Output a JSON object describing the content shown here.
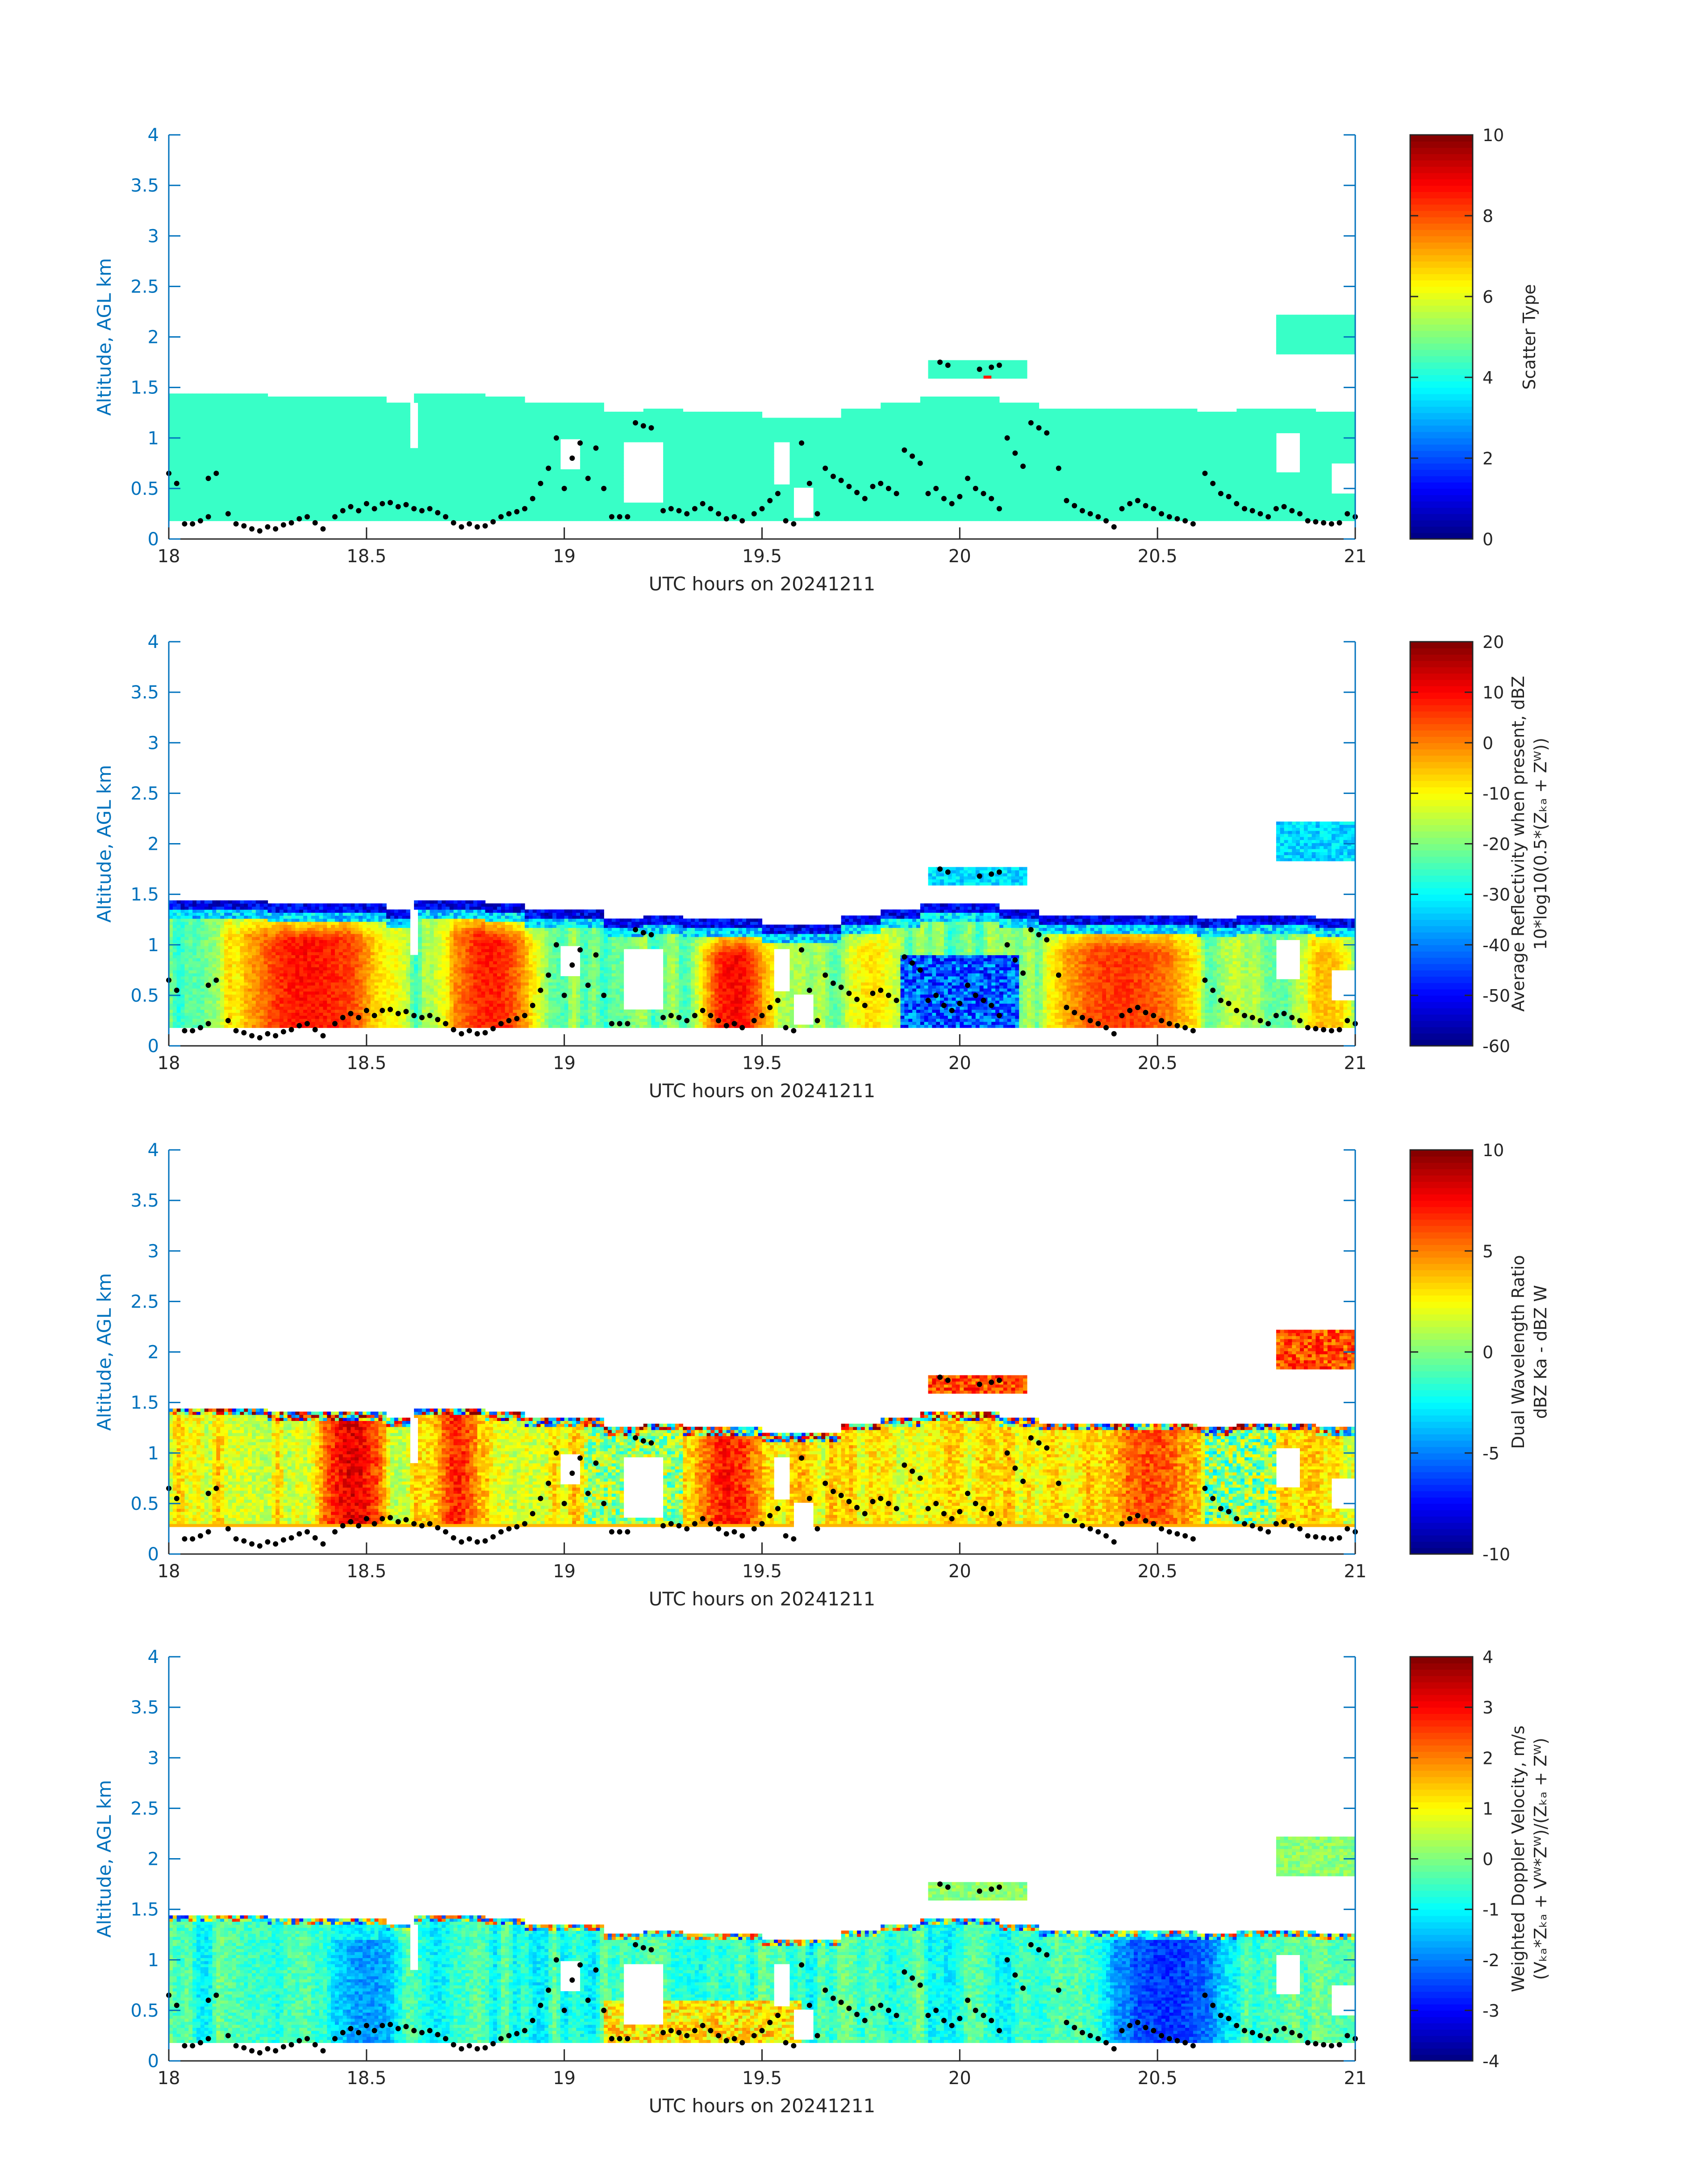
{
  "figure": {
    "background": "#ffffff",
    "axis_color": "#0072bd",
    "text_color": "#262626",
    "colormap": "jet"
  },
  "chart_data": [
    {
      "type": "heatmap",
      "id": "scatter-type",
      "xlabel": "UTC hours on 20241211",
      "ylabel": "Altitude, AGL km",
      "xlim": [
        18,
        21
      ],
      "ylim": [
        0,
        4
      ],
      "xticks": [
        "18",
        "18.5",
        "19",
        "19.5",
        "20",
        "20.5",
        "21"
      ],
      "yticks": [
        "0",
        "0.5",
        "1",
        "1.5",
        "2",
        "2.5",
        "3",
        "3.5",
        "4"
      ],
      "colorbar": {
        "label": [
          "Scatter Type"
        ],
        "min": 0,
        "max": 10,
        "ticks": [
          "0",
          "2",
          "4",
          "6",
          "8",
          "10"
        ]
      },
      "field": {
        "mode": "flat",
        "value": 4.3,
        "cloud_base_km": 0.18,
        "highlights": [
          {
            "t": 20.07,
            "z": 1.6,
            "value": 8.5
          }
        ]
      }
    },
    {
      "type": "heatmap",
      "id": "reflectivity",
      "xlabel": "UTC hours on 20241211",
      "ylabel": "Altitude, AGL km",
      "xlim": [
        18,
        21
      ],
      "ylim": [
        0,
        4
      ],
      "xticks": [
        "18",
        "18.5",
        "19",
        "19.5",
        "20",
        "20.5",
        "21"
      ],
      "yticks": [
        "0",
        "0.5",
        "1",
        "1.5",
        "2",
        "2.5",
        "3",
        "3.5",
        "4"
      ],
      "colorbar": {
        "label": [
          "Average Reflectivity when present, dBZ",
          "10*log10(0.5*(Zₖₐ + Zᵂ))"
        ],
        "min": -60,
        "max": 20,
        "ticks": [
          "-60",
          "-50",
          "-40",
          "-30",
          "-20",
          "-10",
          "0",
          "10",
          "20"
        ]
      },
      "field": {
        "mode": "reflectivity",
        "cloud_base_km": 0.18,
        "cores": [
          {
            "t0": 18.13,
            "t1": 18.58,
            "peak": 9
          },
          {
            "t0": 18.68,
            "t1": 18.95,
            "peak": 8
          },
          {
            "t0": 19.33,
            "t1": 19.53,
            "peak": 10
          },
          {
            "t0": 19.7,
            "t1": 19.85,
            "peak": -8
          },
          {
            "t0": 20.2,
            "t1": 20.62,
            "peak": 6
          },
          {
            "t0": 20.85,
            "t1": 21.0,
            "peak": -5
          }
        ]
      }
    },
    {
      "type": "heatmap",
      "id": "dual-wavelength-ratio",
      "xlabel": "UTC hours on 20241211",
      "ylabel": "Altitude, AGL km",
      "xlim": [
        18,
        21
      ],
      "ylim": [
        0,
        4
      ],
      "xticks": [
        "18",
        "18.5",
        "19",
        "19.5",
        "20",
        "20.5",
        "21"
      ],
      "yticks": [
        "0",
        "0.5",
        "1",
        "1.5",
        "2",
        "2.5",
        "3",
        "3.5",
        "4"
      ],
      "colorbar": {
        "label": [
          "Dual Wavelength Ratio",
          "dBZ Ka - dBZ W"
        ],
        "min": -10,
        "max": 10,
        "ticks": [
          "-10",
          "-5",
          "0",
          "5",
          "10"
        ]
      },
      "field": {
        "mode": "dwr",
        "cloud_base_km": 0.28,
        "cores": [
          {
            "t0": 18.38,
            "t1": 18.55,
            "peak": 8
          },
          {
            "t0": 18.68,
            "t1": 18.78,
            "peak": 7
          },
          {
            "t0": 19.33,
            "t1": 19.5,
            "peak": 7
          },
          {
            "t0": 20.38,
            "t1": 20.6,
            "peak": 6
          }
        ]
      }
    },
    {
      "type": "heatmap",
      "id": "doppler-velocity",
      "xlabel": "UTC hours on 20241211",
      "ylabel": "Altitude, AGL km",
      "xlim": [
        18,
        21
      ],
      "ylim": [
        0,
        4
      ],
      "xticks": [
        "18",
        "18.5",
        "19",
        "19.5",
        "20",
        "20.5",
        "21"
      ],
      "yticks": [
        "0",
        "0.5",
        "1",
        "1.5",
        "2",
        "2.5",
        "3",
        "3.5",
        "4"
      ],
      "colorbar": {
        "label": [
          "Weighted Doppler Velocity, m/s",
          "(Vₖₐ*Zₖₐ + Vᵂ*Zᵂ)/(Zₖₐ + Zᵂ)"
        ],
        "min": -4,
        "max": 4,
        "ticks": [
          "-4",
          "-3",
          "-2",
          "-1",
          "0",
          "1",
          "2",
          "3",
          "4"
        ]
      },
      "field": {
        "mode": "velocity",
        "cloud_base_km": 0.18,
        "cores": [
          {
            "t0": 18.4,
            "t1": 18.6,
            "peak": -1.8
          },
          {
            "t0": 20.35,
            "t1": 20.7,
            "peak": -2.6
          }
        ]
      }
    }
  ],
  "cloud_mask": {
    "top_km": [
      [
        18.0,
        1.45
      ],
      [
        18.1,
        1.45
      ],
      [
        18.2,
        1.45
      ],
      [
        18.25,
        1.4
      ],
      [
        18.35,
        1.4
      ],
      [
        18.45,
        1.4
      ],
      [
        18.55,
        1.35
      ],
      [
        18.62,
        1.45
      ],
      [
        18.7,
        1.45
      ],
      [
        18.8,
        1.4
      ],
      [
        18.9,
        1.35
      ],
      [
        19.0,
        1.35
      ],
      [
        19.1,
        1.25
      ],
      [
        19.2,
        1.3
      ],
      [
        19.3,
        1.25
      ],
      [
        19.4,
        1.25
      ],
      [
        19.5,
        1.2
      ],
      [
        19.6,
        1.2
      ],
      [
        19.7,
        1.3
      ],
      [
        19.8,
        1.35
      ],
      [
        19.9,
        1.4
      ],
      [
        20.0,
        1.4
      ],
      [
        20.1,
        1.35
      ],
      [
        20.2,
        1.3
      ],
      [
        20.3,
        1.3
      ],
      [
        20.4,
        1.3
      ],
      [
        20.5,
        1.3
      ],
      [
        20.6,
        1.25
      ],
      [
        20.7,
        1.3
      ],
      [
        20.8,
        1.3
      ],
      [
        20.9,
        1.25
      ],
      [
        21.0,
        1.25
      ]
    ],
    "elevated_layers": [
      {
        "t0": 19.92,
        "t1": 20.17,
        "z0": 1.58,
        "z1": 1.78
      },
      {
        "t0": 20.8,
        "t1": 21.0,
        "z0": 1.82,
        "z1": 2.22
      }
    ],
    "gaps": [
      {
        "t0": 18.61,
        "t1": 18.63,
        "z0": 0.9,
        "z1": 1.35
      },
      {
        "t0": 18.99,
        "t1": 19.04,
        "z0": 0.7,
        "z1": 1.0
      },
      {
        "t0": 19.15,
        "t1": 19.25,
        "z0": 0.35,
        "z1": 0.95
      },
      {
        "t0": 19.53,
        "t1": 19.57,
        "z0": 0.55,
        "z1": 0.95
      },
      {
        "t0": 19.58,
        "t1": 19.63,
        "z0": 0.2,
        "z1": 0.5
      },
      {
        "t0": 20.8,
        "t1": 20.86,
        "z0": 0.65,
        "z1": 1.05
      },
      {
        "t0": 20.94,
        "t1": 21.0,
        "z0": 0.45,
        "z1": 0.75
      }
    ]
  },
  "overlay_dots": [
    [
      18.0,
      0.65
    ],
    [
      18.02,
      0.55
    ],
    [
      18.04,
      0.15
    ],
    [
      18.06,
      0.15
    ],
    [
      18.08,
      0.18
    ],
    [
      18.1,
      0.22
    ],
    [
      18.1,
      0.6
    ],
    [
      18.12,
      0.65
    ],
    [
      18.15,
      0.25
    ],
    [
      18.17,
      0.15
    ],
    [
      18.19,
      0.13
    ],
    [
      18.21,
      0.1
    ],
    [
      18.23,
      0.08
    ],
    [
      18.25,
      0.12
    ],
    [
      18.27,
      0.1
    ],
    [
      18.29,
      0.14
    ],
    [
      18.31,
      0.16
    ],
    [
      18.33,
      0.2
    ],
    [
      18.35,
      0.22
    ],
    [
      18.37,
      0.16
    ],
    [
      18.39,
      0.1
    ],
    [
      18.42,
      0.22
    ],
    [
      18.44,
      0.28
    ],
    [
      18.46,
      0.32
    ],
    [
      18.48,
      0.28
    ],
    [
      18.5,
      0.35
    ],
    [
      18.52,
      0.3
    ],
    [
      18.54,
      0.35
    ],
    [
      18.56,
      0.36
    ],
    [
      18.58,
      0.32
    ],
    [
      18.6,
      0.34
    ],
    [
      18.62,
      0.3
    ],
    [
      18.64,
      0.28
    ],
    [
      18.66,
      0.3
    ],
    [
      18.68,
      0.26
    ],
    [
      18.7,
      0.22
    ],
    [
      18.72,
      0.16
    ],
    [
      18.74,
      0.12
    ],
    [
      18.76,
      0.15
    ],
    [
      18.78,
      0.12
    ],
    [
      18.8,
      0.13
    ],
    [
      18.82,
      0.17
    ],
    [
      18.84,
      0.22
    ],
    [
      18.86,
      0.25
    ],
    [
      18.88,
      0.27
    ],
    [
      18.9,
      0.3
    ],
    [
      18.92,
      0.4
    ],
    [
      18.94,
      0.55
    ],
    [
      18.96,
      0.7
    ],
    [
      18.98,
      1.0
    ],
    [
      19.0,
      0.5
    ],
    [
      19.02,
      0.8
    ],
    [
      19.04,
      0.95
    ],
    [
      19.06,
      0.6
    ],
    [
      19.08,
      0.9
    ],
    [
      19.1,
      0.5
    ],
    [
      19.12,
      0.22
    ],
    [
      19.14,
      0.22
    ],
    [
      19.16,
      0.22
    ],
    [
      19.18,
      1.15
    ],
    [
      19.2,
      1.12
    ],
    [
      19.22,
      1.1
    ],
    [
      19.25,
      0.28
    ],
    [
      19.27,
      0.3
    ],
    [
      19.29,
      0.28
    ],
    [
      19.31,
      0.25
    ],
    [
      19.33,
      0.3
    ],
    [
      19.35,
      0.35
    ],
    [
      19.37,
      0.3
    ],
    [
      19.39,
      0.25
    ],
    [
      19.41,
      0.2
    ],
    [
      19.43,
      0.22
    ],
    [
      19.45,
      0.18
    ],
    [
      19.48,
      0.25
    ],
    [
      19.5,
      0.3
    ],
    [
      19.52,
      0.38
    ],
    [
      19.54,
      0.45
    ],
    [
      19.56,
      0.18
    ],
    [
      19.58,
      0.15
    ],
    [
      19.6,
      0.95
    ],
    [
      19.62,
      0.55
    ],
    [
      19.64,
      0.25
    ],
    [
      19.66,
      0.7
    ],
    [
      19.68,
      0.62
    ],
    [
      19.7,
      0.58
    ],
    [
      19.72,
      0.52
    ],
    [
      19.74,
      0.46
    ],
    [
      19.76,
      0.4
    ],
    [
      19.78,
      0.52
    ],
    [
      19.8,
      0.55
    ],
    [
      19.82,
      0.5
    ],
    [
      19.84,
      0.45
    ],
    [
      19.86,
      0.88
    ],
    [
      19.88,
      0.82
    ],
    [
      19.9,
      0.75
    ],
    [
      19.92,
      0.45
    ],
    [
      19.94,
      0.5
    ],
    [
      19.96,
      0.4
    ],
    [
      19.98,
      0.35
    ],
    [
      20.0,
      0.42
    ],
    [
      20.02,
      0.6
    ],
    [
      20.04,
      0.5
    ],
    [
      20.06,
      0.45
    ],
    [
      20.08,
      0.4
    ],
    [
      20.1,
      0.3
    ],
    [
      20.12,
      1.0
    ],
    [
      20.14,
      0.85
    ],
    [
      20.16,
      0.72
    ],
    [
      20.18,
      1.15
    ],
    [
      20.2,
      1.1
    ],
    [
      20.22,
      1.05
    ],
    [
      20.25,
      0.7
    ],
    [
      20.27,
      0.38
    ],
    [
      20.29,
      0.33
    ],
    [
      20.31,
      0.28
    ],
    [
      20.33,
      0.25
    ],
    [
      20.35,
      0.22
    ],
    [
      20.37,
      0.18
    ],
    [
      20.39,
      0.12
    ],
    [
      20.41,
      0.3
    ],
    [
      20.43,
      0.35
    ],
    [
      20.45,
      0.38
    ],
    [
      20.47,
      0.33
    ],
    [
      20.49,
      0.3
    ],
    [
      20.51,
      0.25
    ],
    [
      20.53,
      0.22
    ],
    [
      20.55,
      0.2
    ],
    [
      20.57,
      0.18
    ],
    [
      20.59,
      0.15
    ],
    [
      20.62,
      0.65
    ],
    [
      20.64,
      0.55
    ],
    [
      20.66,
      0.45
    ],
    [
      20.68,
      0.42
    ],
    [
      20.7,
      0.35
    ],
    [
      20.72,
      0.3
    ],
    [
      20.74,
      0.28
    ],
    [
      20.76,
      0.25
    ],
    [
      20.78,
      0.22
    ],
    [
      20.8,
      0.3
    ],
    [
      20.82,
      0.32
    ],
    [
      20.84,
      0.28
    ],
    [
      20.86,
      0.25
    ],
    [
      20.88,
      0.18
    ],
    [
      20.9,
      0.17
    ],
    [
      20.92,
      0.16
    ],
    [
      20.94,
      0.15
    ],
    [
      20.96,
      0.16
    ],
    [
      20.98,
      0.25
    ],
    [
      21.0,
      0.22
    ],
    [
      19.95,
      1.75
    ],
    [
      19.97,
      1.72
    ],
    [
      20.05,
      1.68
    ],
    [
      20.08,
      1.7
    ],
    [
      20.1,
      1.72
    ]
  ]
}
